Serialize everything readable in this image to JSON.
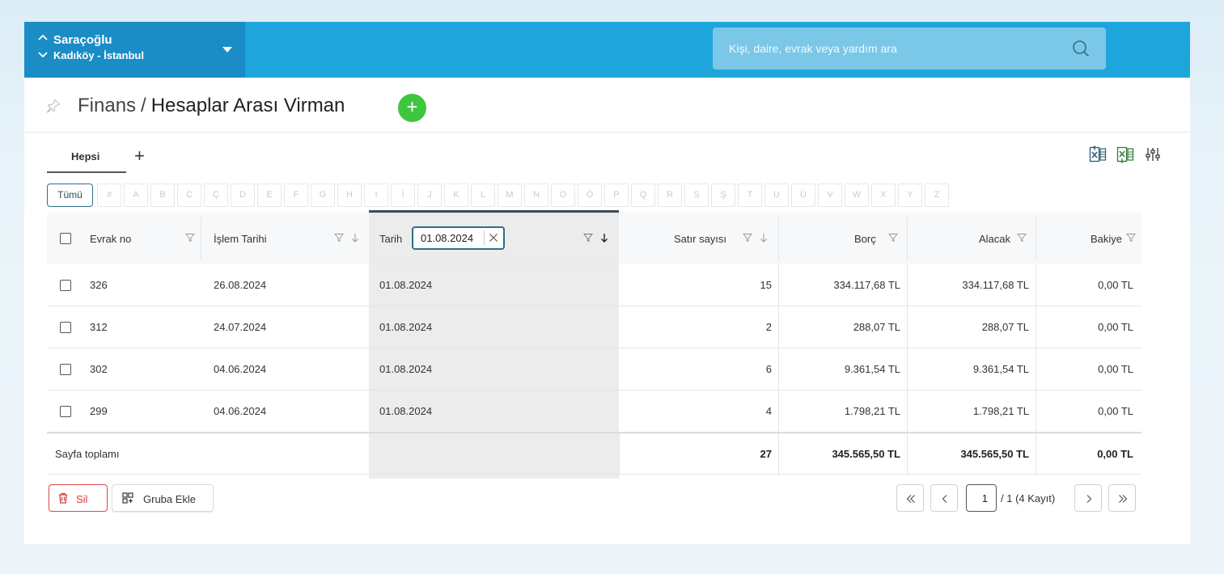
{
  "site": {
    "name": "Saraçoğlu",
    "location": "Kadıköy - İstanbul"
  },
  "search": {
    "placeholder": "Kişi, daire, evrak veya yardım ara"
  },
  "header": {
    "section": "Finans",
    "separator": "/",
    "title": "Hesaplar Arası Virman"
  },
  "tabs": {
    "all_label": "Hepsi",
    "add_label": "+"
  },
  "letters": {
    "all_label": "Tümü",
    "items": [
      "#",
      "A",
      "B",
      "C",
      "Ç",
      "D",
      "E",
      "F",
      "G",
      "H",
      "I",
      "İ",
      "J",
      "K",
      "L",
      "M",
      "N",
      "O",
      "Ö",
      "P",
      "Q",
      "R",
      "S",
      "Ş",
      "T",
      "U",
      "Ü",
      "V",
      "W",
      "X",
      "Y",
      "Z"
    ]
  },
  "table": {
    "columns": {
      "evrak_no": "Evrak no",
      "islem_tarihi": "İşlem Tarihi",
      "tarih": "Tarih",
      "satir_sayisi": "Satır sayısı",
      "borc": "Borç",
      "alacak": "Alacak",
      "bakiye": "Bakiye"
    },
    "date_filter_value": "01.08.2024",
    "rows": [
      {
        "evrak_no": "326",
        "islem_tarihi": "26.08.2024",
        "tarih": "01.08.2024",
        "satir_sayisi": "15",
        "borc": "334.117,68 TL",
        "alacak": "334.117,68 TL",
        "bakiye": "0,00 TL"
      },
      {
        "evrak_no": "312",
        "islem_tarihi": "24.07.2024",
        "tarih": "01.08.2024",
        "satir_sayisi": "2",
        "borc": "288,07 TL",
        "alacak": "288,07 TL",
        "bakiye": "0,00 TL"
      },
      {
        "evrak_no": "302",
        "islem_tarihi": "04.06.2024",
        "tarih": "01.08.2024",
        "satir_sayisi": "6",
        "borc": "9.361,54 TL",
        "alacak": "9.361,54 TL",
        "bakiye": "0,00 TL"
      },
      {
        "evrak_no": "299",
        "islem_tarihi": "04.06.2024",
        "tarih": "01.08.2024",
        "satir_sayisi": "4",
        "borc": "1.798,21 TL",
        "alacak": "1.798,21 TL",
        "bakiye": "0,00 TL"
      }
    ],
    "footer": {
      "label": "Sayfa toplamı",
      "satir_sayisi": "27",
      "borc": "345.565,50 TL",
      "alacak": "345.565,50 TL",
      "bakiye": "0,00 TL"
    }
  },
  "actions": {
    "delete_label": "Sil",
    "group_label": "Gruba Ekle"
  },
  "pagination": {
    "current_page": "1",
    "info": "/ 1 (4 Kayıt)"
  },
  "colors": {
    "topbar": "#1ea6dc",
    "site_switch": "#1a8dc6",
    "add": "#3ec63e",
    "delete": "#d33c3c",
    "accent": "#2f6f8a"
  }
}
